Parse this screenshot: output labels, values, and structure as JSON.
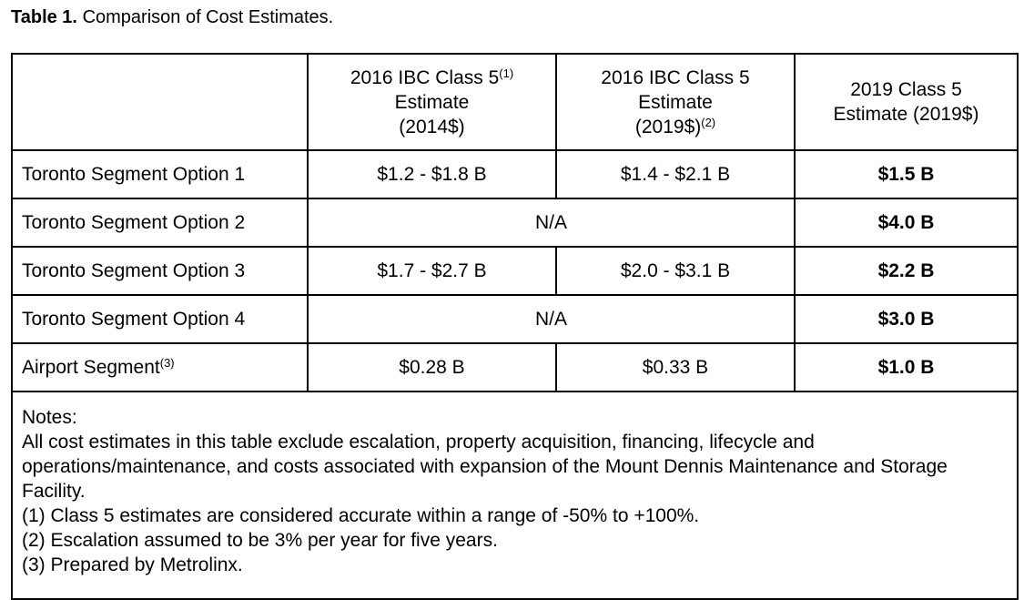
{
  "title": {
    "label": "Table 1.",
    "text": "Comparison of Cost Estimates."
  },
  "table": {
    "header": [
      [
        [
          "2016 IBC Class 5",
          "(1)"
        ],
        [
          "Estimate"
        ],
        [
          "(2014$)"
        ]
      ],
      [
        [
          "2016 IBC Class 5"
        ],
        [
          "Estimate"
        ],
        [
          "(2019$)",
          "(2)"
        ]
      ],
      [
        [
          "2019 Class 5"
        ],
        [
          "Estimate (2019$)"
        ]
      ]
    ],
    "rows": [
      {
        "label": [
          "Toronto Segment Option 1"
        ],
        "cells": [
          "$1.2 - $1.8 B",
          "$1.4 - $2.1 B",
          "$1.5 B"
        ]
      },
      {
        "label": [
          "Toronto Segment Option 2"
        ],
        "cells": [
          "N/A",
          "$4.0 B"
        ]
      },
      {
        "label": [
          "Toronto Segment Option 3"
        ],
        "cells": [
          "$1.7 - $2.7 B",
          "$2.0 - $3.1 B",
          "$2.2 B"
        ]
      },
      {
        "label": [
          "Toronto Segment Option 4"
        ],
        "cells": [
          "N/A",
          "$3.0 B"
        ]
      },
      {
        "label": [
          "Airport Segment",
          "(3)"
        ],
        "cells": [
          "$0.28 B",
          "$0.33 B",
          "$1.0 B"
        ]
      }
    ],
    "notes": [
      "Notes:",
      "All cost estimates in this table exclude escalation, property acquisition, financing, lifecycle and operations/maintenance, and costs associated with expansion of the Mount Dennis Maintenance and Storage Facility.",
      "(1) Class 5 estimates are considered accurate within a range of -50% to +100%.",
      "(2) Escalation assumed to be 3% per year for five years.",
      "(3) Prepared by Metrolinx."
    ]
  }
}
